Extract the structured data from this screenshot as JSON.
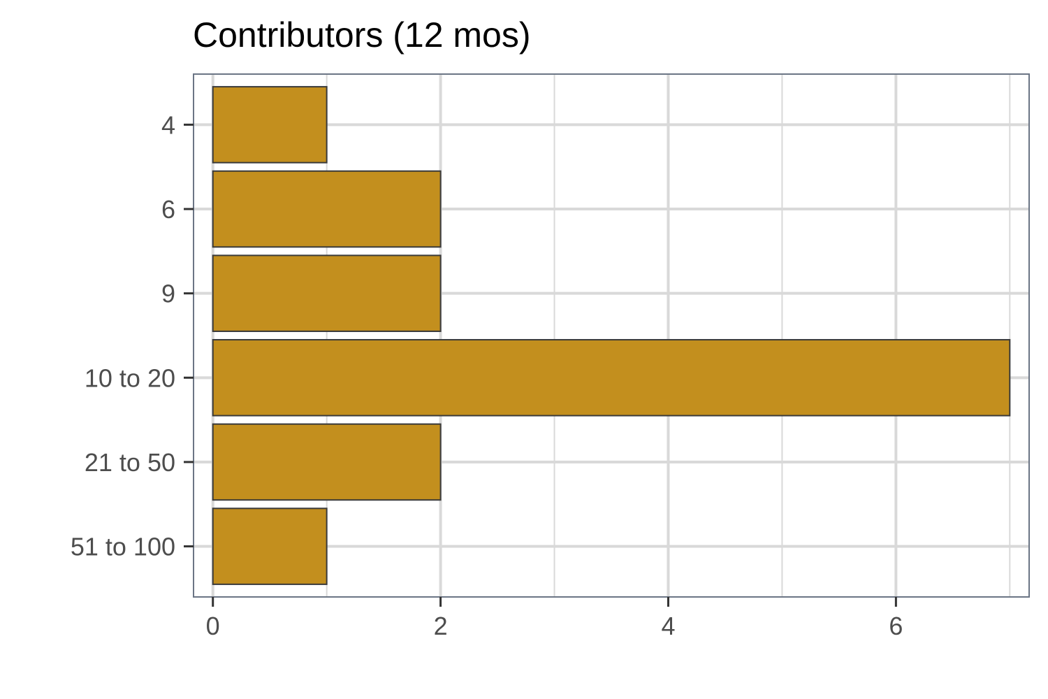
{
  "chart_data": {
    "type": "bar",
    "orientation": "horizontal",
    "title": "Contributors (12 mos)",
    "xlabel": "",
    "ylabel": "",
    "categories": [
      "4",
      "6",
      "9",
      "10 to 20",
      "21 to 50",
      "51 to 100"
    ],
    "values": [
      1,
      2,
      2,
      7,
      2,
      1
    ],
    "xlim": [
      -0.17,
      7.17
    ],
    "xticks": [
      0,
      2,
      4,
      6
    ],
    "xtick_labels": [
      "0",
      "2",
      "4",
      "6"
    ],
    "grid": true,
    "legend": "none",
    "colors": {
      "bar_fill": "#c38f1e",
      "bar_stroke": "#3a3a3a",
      "grid": "#d9d9d9",
      "panel_border": "#6b7585",
      "tick_label": "#4d4d4d",
      "axis_tick": "#333333"
    }
  }
}
